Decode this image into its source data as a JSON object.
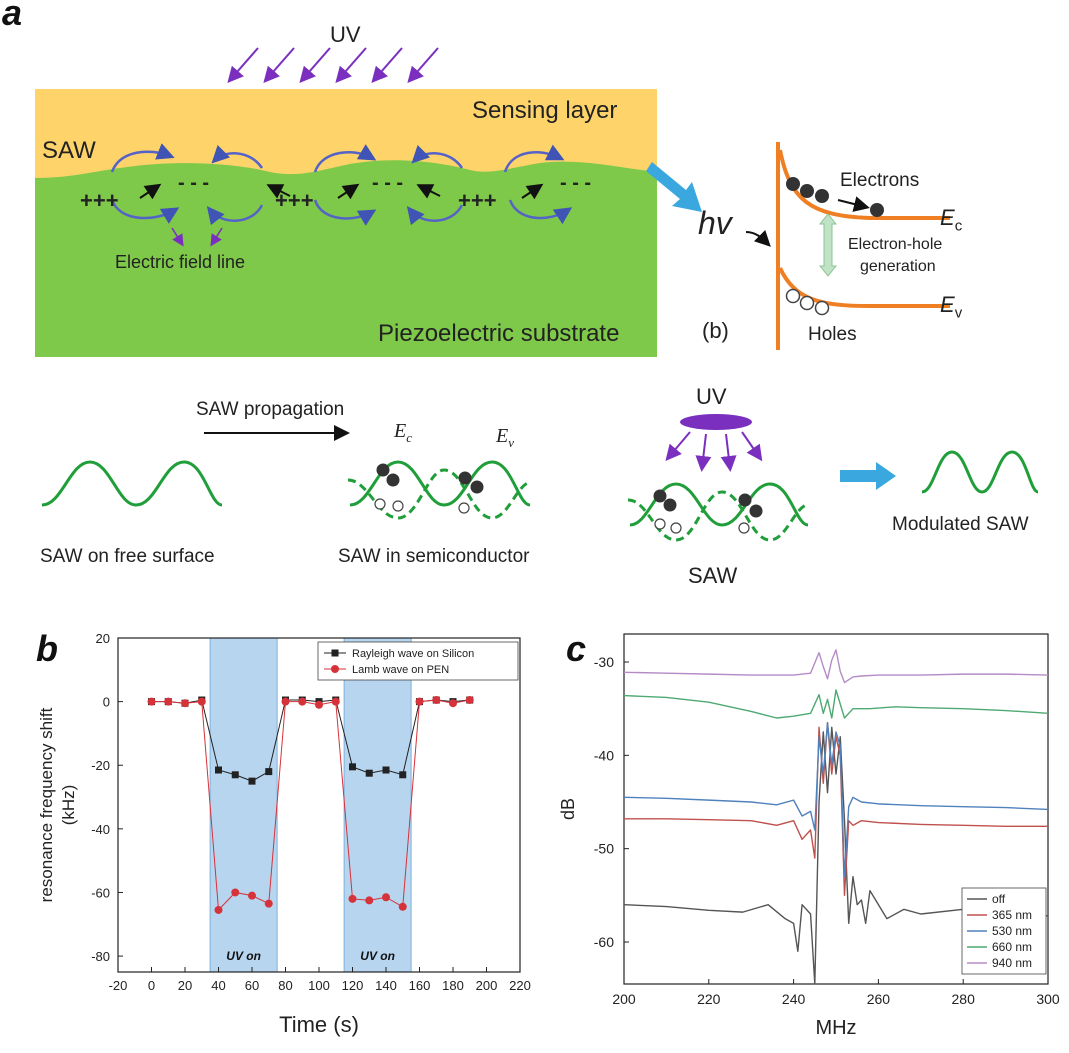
{
  "panel_a": {
    "letter": "a",
    "uv_label": "UV",
    "sensing_layer": "Sensing layer",
    "saw_label": "SAW",
    "charges_plus": "+++",
    "charges_minus": "- - -",
    "field_line_label": "Electric field line",
    "substrate_label": "Piezoelectric substrate",
    "band": {
      "hv": "hv",
      "electrons": "Electrons",
      "ec_main": "E",
      "ec_sub": "c",
      "ev_main": "E",
      "ev_sub": "v",
      "generation_line1": "Electron-hole",
      "generation_line2": "generation",
      "holes": "Holes",
      "sublabel": "(b)"
    },
    "propagation_label": "SAW propagation",
    "free_surface_label": "SAW on free surface",
    "semiconductor_label": "SAW in semiconductor",
    "ec_serif": "E",
    "ec_serif_sub": "c",
    "ev_serif": "E",
    "ev_serif_sub": "v",
    "uv_lamp_label": "UV",
    "saw_bottom_label": "SAW",
    "modulated_label": "Modulated SAW",
    "colors": {
      "sensing": "#fdd36a",
      "substrate": "#7ec84a",
      "wave": "#1f9e3a",
      "arrow_blue": "#3aa7df",
      "purple": "#7b2fbf",
      "band": "#f07f24"
    }
  },
  "panel_b": {
    "letter": "b",
    "uv_on_1": "UV on",
    "uv_on_2": "UV on"
  },
  "panel_c": {
    "letter": "c"
  },
  "chart_data": [
    {
      "type": "line",
      "xlabel": "Time (s)",
      "ylabel_line1": "resonance frequency shift",
      "ylabel_line2": "(kHz)",
      "xlim": [
        -20,
        220
      ],
      "ylim": [
        -85,
        20
      ],
      "xticks": [
        -20,
        0,
        20,
        40,
        60,
        80,
        100,
        120,
        140,
        160,
        180,
        200,
        220
      ],
      "yticks": [
        20,
        0,
        -20,
        -40,
        -60,
        -80
      ],
      "shaded_regions": [
        [
          35,
          75
        ],
        [
          115,
          155
        ]
      ],
      "series": [
        {
          "name": "Rayleigh wave on Silicon",
          "color": "#222222",
          "marker": "square",
          "x": [
            0,
            10,
            20,
            30,
            40,
            50,
            60,
            70,
            80,
            90,
            100,
            110,
            120,
            130,
            140,
            150,
            160,
            170,
            180,
            190
          ],
          "y": [
            0,
            0,
            -0.5,
            0.5,
            -21.5,
            -23,
            -25,
            -22,
            0.5,
            0.5,
            0,
            0.5,
            -20.5,
            -22.5,
            -21.5,
            -23,
            0,
            0.5,
            0,
            0.5
          ]
        },
        {
          "name": "Lamb wave on PEN",
          "color": "#d6323a",
          "marker": "circle",
          "x": [
            0,
            10,
            20,
            30,
            40,
            50,
            60,
            70,
            80,
            90,
            100,
            110,
            120,
            130,
            140,
            150,
            160,
            170,
            180,
            190
          ],
          "y": [
            0,
            0,
            -0.5,
            0,
            -65.5,
            -60,
            -61,
            -63.5,
            0,
            0,
            -1,
            0,
            -62,
            -62.5,
            -61.5,
            -64.5,
            0,
            0.5,
            -0.5,
            0.5
          ]
        }
      ]
    },
    {
      "type": "line",
      "xlabel": "MHz",
      "ylabel": "dB",
      "xlim": [
        200,
        300
      ],
      "ylim": [
        -64.5,
        -27
      ],
      "xticks": [
        200,
        220,
        240,
        260,
        280,
        300
      ],
      "yticks": [
        -30,
        -40,
        -50,
        -60
      ],
      "legend": "bottom-right",
      "series": [
        {
          "name": "off",
          "color": "#555555",
          "x": [
            200,
            210,
            220,
            228,
            234,
            238,
            240,
            241,
            242,
            244,
            245,
            246,
            247,
            248,
            249,
            250,
            251,
            252,
            253,
            254,
            255,
            256,
            257,
            258,
            260,
            262,
            266,
            270,
            280,
            290,
            300
          ],
          "y": [
            -56,
            -56.2,
            -56.6,
            -56.8,
            -56,
            -57.5,
            -58,
            -61,
            -56,
            -57,
            -64.5,
            -45,
            -37.5,
            -44,
            -37,
            -42,
            -38,
            -47,
            -58,
            -53,
            -56,
            -55.5,
            -58,
            -54.5,
            -56,
            -57.5,
            -56.5,
            -57,
            -56.5,
            -57,
            -57.2
          ]
        },
        {
          "name": "365 nm",
          "color": "#c0504d",
          "x": [
            200,
            210,
            220,
            230,
            236,
            240,
            242,
            244,
            245,
            246,
            247,
            248,
            249,
            250,
            251,
            252,
            253,
            254,
            256,
            260,
            270,
            280,
            290,
            300
          ],
          "y": [
            -46.8,
            -46.8,
            -46.9,
            -47,
            -47.5,
            -47,
            -49,
            -48,
            -51,
            -37,
            -43,
            -36.5,
            -42,
            -38,
            -40,
            -55,
            -47,
            -47.5,
            -47,
            -47.2,
            -47.4,
            -47.5,
            -47.6,
            -47.6
          ]
        },
        {
          "name": "530 nm",
          "color": "#4f81bd",
          "x": [
            200,
            210,
            220,
            230,
            236,
            240,
            242,
            244,
            245,
            246,
            247,
            248,
            249,
            250,
            251,
            252,
            253,
            254,
            256,
            260,
            270,
            280,
            290,
            300
          ],
          "y": [
            -44.5,
            -44.6,
            -44.8,
            -45,
            -45.3,
            -44.8,
            -46.5,
            -46,
            -48,
            -38,
            -42,
            -36.5,
            -41,
            -37.5,
            -39,
            -53,
            -45.5,
            -44.5,
            -45,
            -45.2,
            -45.4,
            -45.5,
            -45.6,
            -45.8
          ]
        },
        {
          "name": "660 nm",
          "color": "#4ea972",
          "x": [
            200,
            210,
            220,
            230,
            236,
            240,
            244,
            246,
            247,
            248,
            249,
            250,
            251,
            252,
            254,
            258,
            264,
            270,
            280,
            290,
            300
          ],
          "y": [
            -33.6,
            -33.8,
            -34.3,
            -35.3,
            -36,
            -35.8,
            -35.5,
            -33.5,
            -35.5,
            -34,
            -36,
            -33,
            -34.5,
            -36,
            -35,
            -35,
            -34.8,
            -34.9,
            -35,
            -35.2,
            -35.5
          ]
        },
        {
          "name": "940 nm",
          "color": "#b58bc6",
          "x": [
            200,
            210,
            220,
            230,
            240,
            244,
            246,
            247,
            248,
            249,
            250,
            251,
            252,
            254,
            256,
            260,
            270,
            280,
            290,
            300
          ],
          "y": [
            -31.1,
            -31.2,
            -31.3,
            -31.4,
            -31.4,
            -31.2,
            -29,
            -30.5,
            -31.8,
            -29.8,
            -28.7,
            -31,
            -32.2,
            -31.6,
            -31.5,
            -31.4,
            -31.4,
            -31.3,
            -31.3,
            -31.4
          ]
        }
      ]
    }
  ]
}
